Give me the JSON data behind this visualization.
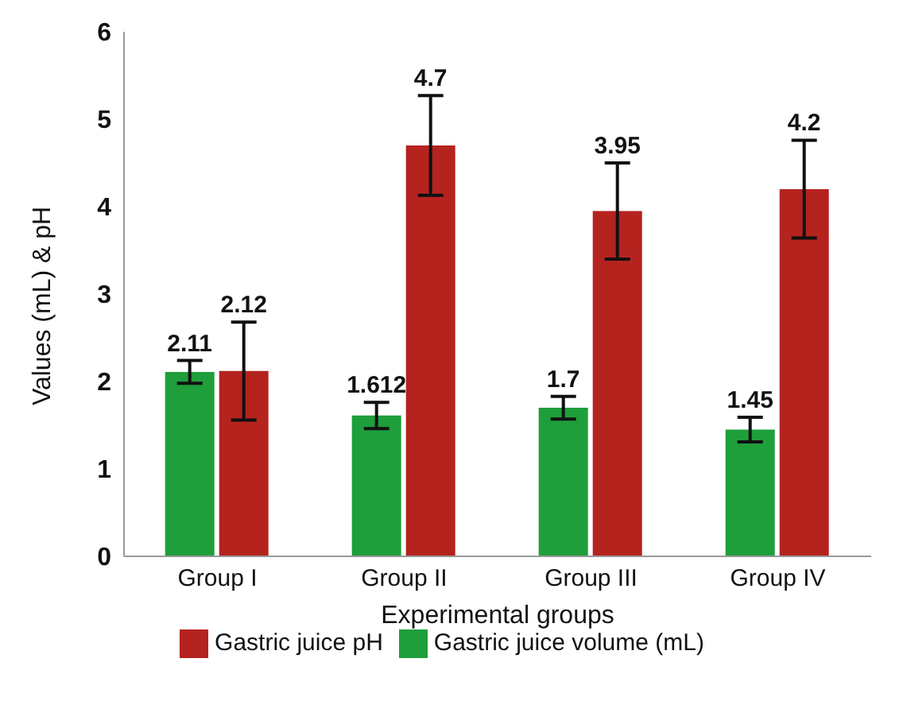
{
  "chart_data": {
    "type": "bar",
    "xlabel": "Experimental groups",
    "ylabel": "Values (mL) & pH",
    "categories": [
      "Group I",
      "Group II",
      "Group III",
      "Group IV"
    ],
    "series": [
      {
        "name": "Gastric juice volume (mL)",
        "color": "#1f9e3c",
        "values": [
          2.11,
          1.612,
          1.7,
          1.45
        ],
        "errors": [
          0.13,
          0.15,
          0.13,
          0.14
        ]
      },
      {
        "name": "Gastric juice pH",
        "color": "#b5231f",
        "values": [
          2.12,
          4.7,
          3.95,
          4.2
        ],
        "errors": [
          0.56,
          0.57,
          0.55,
          0.56
        ]
      }
    ],
    "ylim": [
      0,
      6
    ],
    "yticks": [
      0,
      1,
      2,
      3,
      4,
      5,
      6
    ],
    "data_labels": true,
    "legend": "bottom",
    "grid": false
  }
}
